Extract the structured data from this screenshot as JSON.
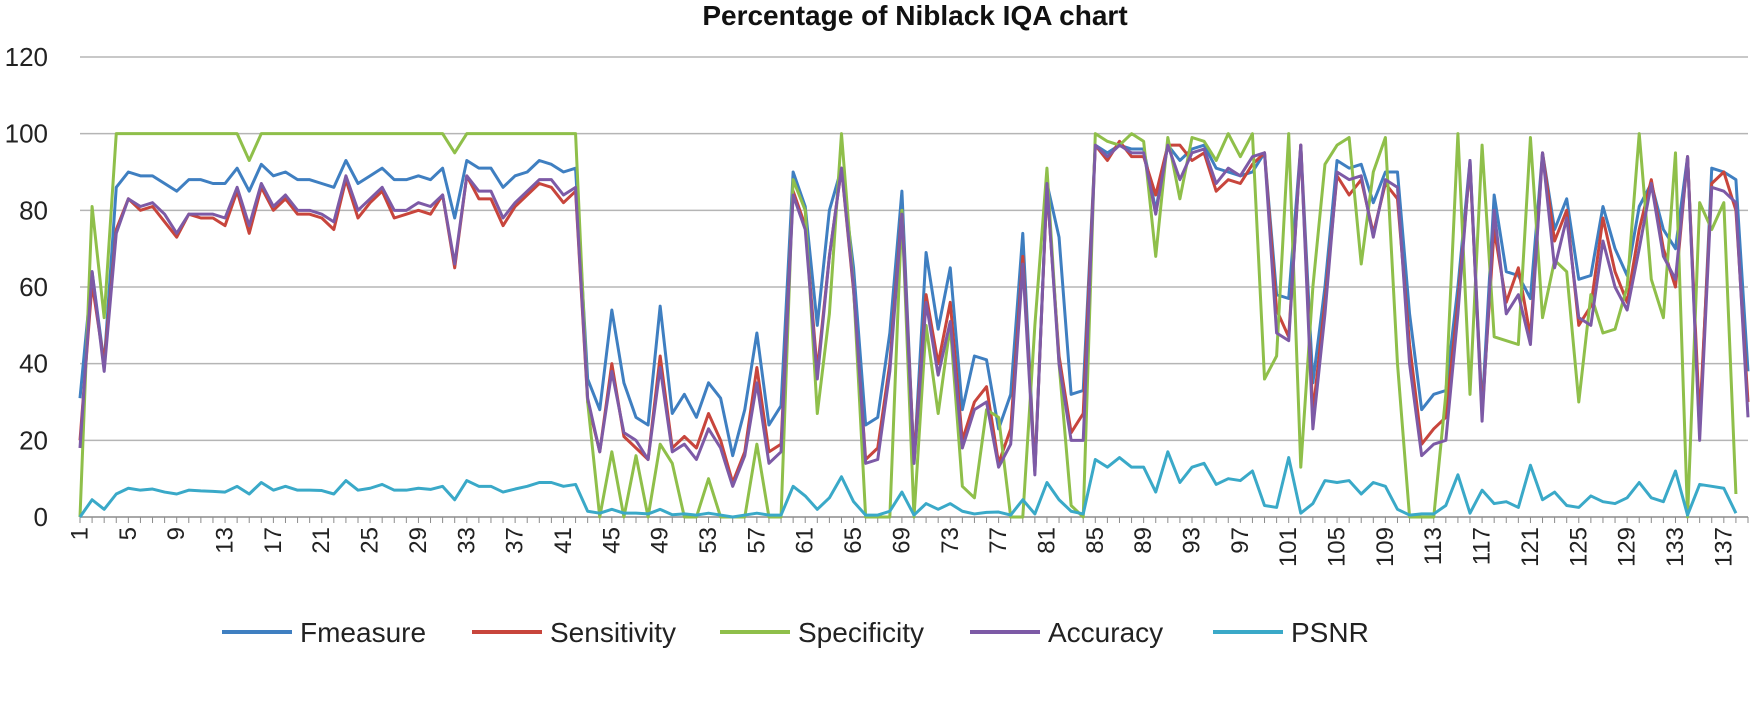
{
  "chart_data": {
    "type": "line",
    "title": "Percentage of Niblack IQA chart",
    "xlabel": "",
    "ylabel": "",
    "ylim": [
      0,
      120
    ],
    "yticks": [
      "0",
      "20",
      "40",
      "60",
      "80",
      "100",
      "120"
    ],
    "x_start": 1,
    "x_count": 139,
    "xticks": [
      "1",
      "5",
      "9",
      "13",
      "17",
      "21",
      "25",
      "29",
      "33",
      "37",
      "41",
      "45",
      "49",
      "53",
      "57",
      "61",
      "65",
      "69",
      "73",
      "77",
      "81",
      "85",
      "89",
      "93",
      "97",
      "101",
      "105",
      "109",
      "113",
      "117",
      "121",
      "125",
      "129",
      "133",
      "137"
    ],
    "grid": true,
    "legend_position": "bottom",
    "series": [
      {
        "name": "Fmeasure",
        "color": "#3f7fc1",
        "values": [
          31,
          64,
          40,
          86,
          90,
          89,
          89,
          87,
          85,
          88,
          88,
          87,
          87,
          91,
          85,
          92,
          89,
          90,
          88,
          88,
          87,
          86,
          93,
          87,
          89,
          91,
          88,
          88,
          89,
          88,
          91,
          78,
          93,
          91,
          91,
          86,
          89,
          90,
          93,
          92,
          90,
          91,
          36,
          28,
          54,
          35,
          26,
          24,
          55,
          27,
          32,
          26,
          35,
          31,
          16,
          28,
          48,
          24,
          29,
          90,
          81,
          50,
          80,
          91,
          65,
          24,
          26,
          48,
          85,
          14,
          69,
          49,
          65,
          28,
          42,
          41,
          23,
          32,
          74,
          12,
          87,
          73,
          32,
          33,
          97,
          95,
          97,
          96,
          96,
          80,
          97,
          93,
          96,
          97,
          91,
          90,
          89,
          90,
          95,
          58,
          57,
          97,
          35,
          60,
          93,
          91,
          92,
          82,
          90,
          90,
          53,
          28,
          32,
          33,
          60,
          93,
          28,
          84,
          64,
          63,
          57,
          95,
          75,
          83,
          62,
          63,
          81,
          70,
          63,
          81,
          87,
          75,
          70,
          94,
          22,
          91,
          90,
          88,
          38
        ]
      },
      {
        "name": "Sensitivity",
        "color": "#c8453c",
        "values": [
          20,
          61,
          40,
          75,
          83,
          80,
          81,
          77,
          73,
          79,
          78,
          78,
          76,
          85,
          74,
          86,
          80,
          83,
          79,
          79,
          78,
          75,
          88,
          78,
          82,
          85,
          78,
          79,
          80,
          79,
          84,
          65,
          89,
          83,
          83,
          76,
          81,
          84,
          87,
          86,
          82,
          85,
          30,
          17,
          40,
          21,
          18,
          15,
          42,
          18,
          21,
          18,
          27,
          20,
          9,
          17,
          39,
          17,
          19,
          85,
          76,
          38,
          68,
          91,
          59,
          15,
          18,
          40,
          80,
          15,
          58,
          40,
          56,
          20,
          30,
          34,
          14,
          23,
          68,
          12,
          86,
          42,
          22,
          27,
          97,
          93,
          98,
          94,
          94,
          84,
          97,
          97,
          93,
          95,
          85,
          88,
          87,
          92,
          95,
          54,
          47,
          97,
          27,
          56,
          89,
          84,
          88,
          74,
          87,
          83,
          45,
          19,
          23,
          26,
          56,
          92,
          27,
          75,
          56,
          65,
          47,
          95,
          72,
          80,
          50,
          55,
          78,
          64,
          56,
          75,
          88,
          70,
          60,
          94,
          25,
          87,
          90,
          80,
          30
        ]
      },
      {
        "name": "Specificity",
        "color": "#8fbf4a",
        "values": [
          0,
          81,
          52,
          100,
          100,
          100,
          100,
          100,
          100,
          100,
          100,
          100,
          100,
          100,
          93,
          100,
          100,
          100,
          100,
          100,
          100,
          100,
          100,
          100,
          100,
          100,
          100,
          100,
          100,
          100,
          100,
          95,
          100,
          100,
          100,
          100,
          100,
          100,
          100,
          100,
          100,
          100,
          30,
          0,
          17,
          0,
          16,
          0,
          19,
          14,
          0,
          0,
          10,
          0,
          0,
          0,
          19,
          0,
          0,
          88,
          80,
          27,
          53,
          100,
          60,
          0,
          0,
          0,
          80,
          0,
          50,
          27,
          50,
          8,
          5,
          28,
          26,
          0,
          0,
          50,
          91,
          40,
          3,
          0,
          100,
          98,
          97,
          100,
          98,
          68,
          99,
          83,
          99,
          98,
          93,
          100,
          94,
          100,
          36,
          42,
          100,
          13,
          60,
          92,
          97,
          99,
          66,
          90,
          99,
          40,
          0,
          0,
          0,
          32,
          100,
          32,
          97,
          47,
          46,
          45,
          99,
          52,
          67,
          64,
          30,
          58,
          48,
          49,
          60,
          100,
          62,
          52,
          95,
          0,
          82,
          75,
          82,
          6
        ]
      },
      {
        "name": "Accuracy",
        "color": "#7d5aa6",
        "values": [
          18,
          64,
          38,
          74,
          83,
          81,
          82,
          79,
          74,
          79,
          79,
          79,
          78,
          86,
          76,
          87,
          81,
          84,
          80,
          80,
          79,
          77,
          89,
          80,
          83,
          86,
          80,
          80,
          82,
          81,
          84,
          66,
          89,
          85,
          85,
          78,
          82,
          85,
          88,
          88,
          84,
          86,
          31,
          17,
          38,
          22,
          20,
          15,
          39,
          17,
          19,
          15,
          23,
          18,
          8,
          16,
          35,
          14,
          17,
          84,
          75,
          36,
          68,
          91,
          60,
          14,
          15,
          38,
          79,
          14,
          56,
          37,
          51,
          18,
          28,
          30,
          13,
          19,
          66,
          11,
          87,
          40,
          20,
          20,
          97,
          94,
          97,
          95,
          95,
          79,
          97,
          88,
          95,
          96,
          87,
          91,
          89,
          94,
          95,
          48,
          46,
          97,
          23,
          53,
          90,
          88,
          89,
          73,
          88,
          86,
          40,
          16,
          19,
          20,
          53,
          93,
          25,
          80,
          53,
          58,
          45,
          95,
          65,
          78,
          52,
          50,
          72,
          60,
          54,
          70,
          87,
          68,
          62,
          94,
          20,
          86,
          85,
          82,
          26
        ]
      },
      {
        "name": "PSNR",
        "color": "#3aa9c8",
        "values": [
          0,
          4.5,
          2,
          6,
          7.5,
          7,
          7.3,
          6.5,
          6,
          7,
          6.8,
          6.7,
          6.5,
          8,
          6,
          9,
          7,
          8,
          7,
          7,
          6.9,
          6,
          9.5,
          7,
          7.5,
          8.5,
          7,
          7,
          7.5,
          7.2,
          8,
          4.5,
          9.5,
          8,
          8,
          6.5,
          7.3,
          8,
          9,
          9,
          8,
          8.5,
          1.5,
          1,
          2,
          1,
          1,
          0.8,
          2,
          0.6,
          0.8,
          0.5,
          1,
          0.5,
          0,
          0.5,
          1,
          0.5,
          0.5,
          8,
          5.5,
          2,
          5,
          10.5,
          4,
          0.5,
          0.5,
          1.5,
          6.5,
          0.5,
          3.5,
          2,
          3.5,
          1.5,
          0.8,
          1.2,
          1.3,
          0.5,
          4.5,
          0.8,
          9,
          4.5,
          1.5,
          0.8,
          15,
          13,
          15.5,
          13,
          13,
          6.5,
          17,
          9,
          13,
          14,
          8.5,
          10,
          9.5,
          12,
          3,
          2.5,
          15.5,
          1,
          3.5,
          9.5,
          9,
          9.5,
          6,
          9,
          8,
          2,
          0.5,
          0.8,
          0.8,
          3,
          11,
          1,
          7,
          3.5,
          4,
          2.5,
          13.5,
          4.5,
          6.5,
          3,
          2.5,
          5.5,
          4,
          3.5,
          5,
          9,
          5,
          4,
          12,
          0.5,
          8.5,
          8,
          7.5,
          1
        ]
      }
    ]
  }
}
